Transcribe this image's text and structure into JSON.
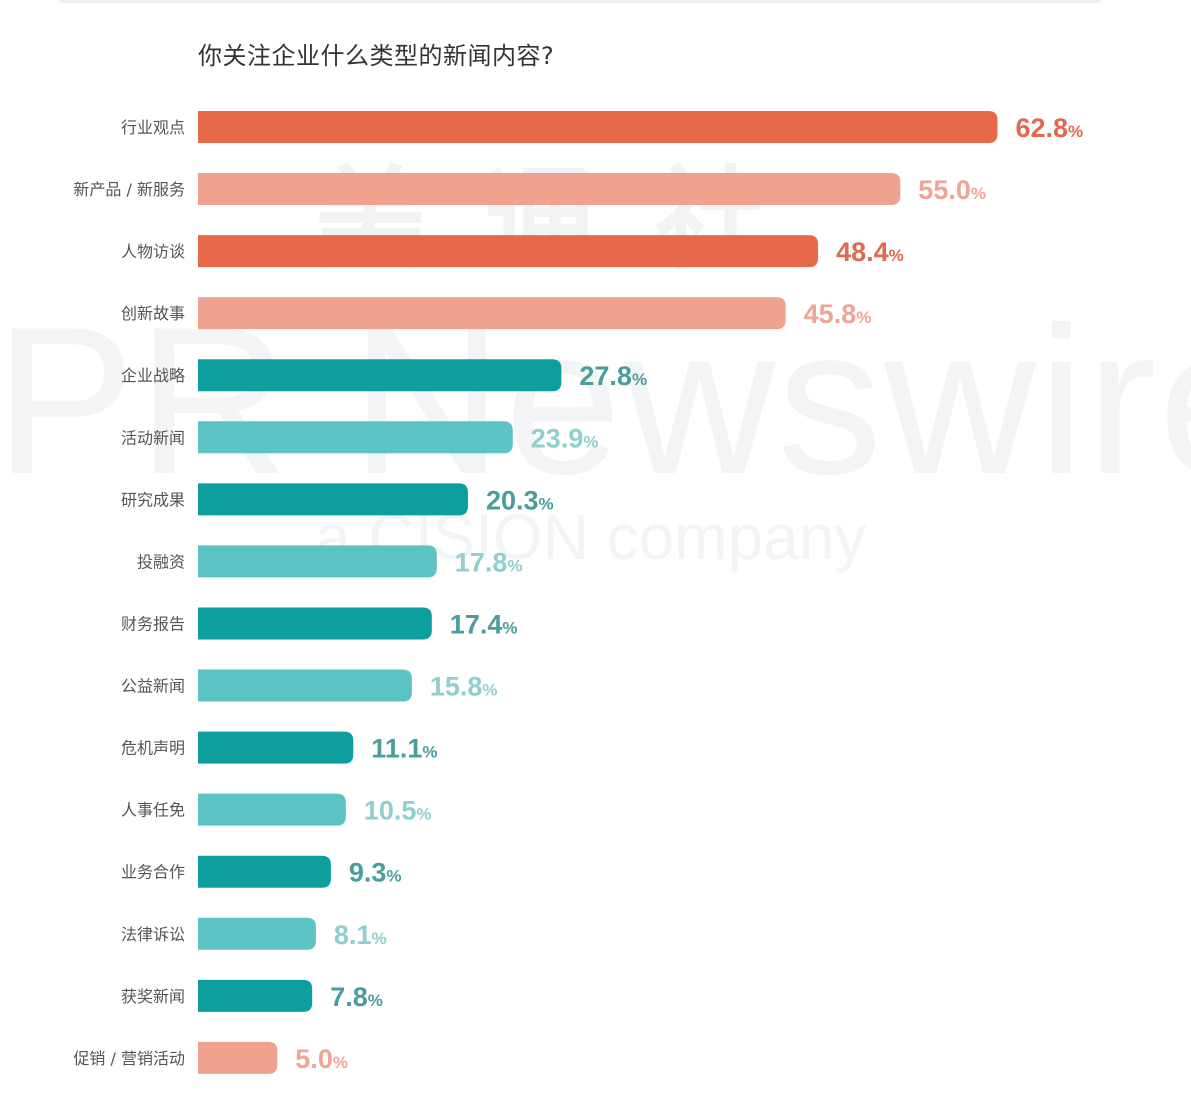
{
  "chart_data": {
    "type": "bar",
    "orientation": "horizontal",
    "title": "你关注企业什么类型的新闻内容?",
    "categories": [
      "行业观点",
      "新产品 / 新服务",
      "人物访谈",
      "创新故事",
      "企业战略",
      "活动新闻",
      "研究成果",
      "投融资",
      "财务报告",
      "公益新闻",
      "危机声明",
      "人事任免",
      "业务合作",
      "法律诉讼",
      "获奖新闻",
      "促销 / 营销活动"
    ],
    "values": [
      62.8,
      55.0,
      48.4,
      45.8,
      27.8,
      23.9,
      20.3,
      17.8,
      17.4,
      15.8,
      11.1,
      10.5,
      9.3,
      8.1,
      7.8,
      5.0
    ],
    "value_labels": [
      "62.8",
      "55.0",
      "48.4",
      "45.8",
      "27.8",
      "23.9",
      "20.3",
      "17.8",
      "17.4",
      "15.8",
      "11.1",
      "10.5",
      "9.3",
      "8.1",
      "7.8",
      "5.0"
    ],
    "unit": "%",
    "bar_colors": [
      "#e8694a",
      "#f0a291",
      "#e8694a",
      "#f0a291",
      "#0e9e9e",
      "#5cc3c3",
      "#0e9e9e",
      "#5cc3c3",
      "#0e9e9e",
      "#5cc3c3",
      "#0e9e9e",
      "#5cc3c3",
      "#0e9e9e",
      "#5cc3c3",
      "#0e9e9e",
      "#f0a291"
    ],
    "label_colors": [
      "#e0694e",
      "#eea595",
      "#e0694e",
      "#eea595",
      "#4a9d9d",
      "#8fcfcf",
      "#4a9d9d",
      "#8fcfcf",
      "#4a9d9d",
      "#8fcfcf",
      "#4a9d9d",
      "#8fcfcf",
      "#4a9d9d",
      "#8fcfcf",
      "#4a9d9d",
      "#eea595"
    ],
    "grid": false,
    "legend": "none"
  },
  "watermark": {
    "cn": "美通社",
    "brand": "PR Newswire",
    "tagline": "a CISION company"
  }
}
